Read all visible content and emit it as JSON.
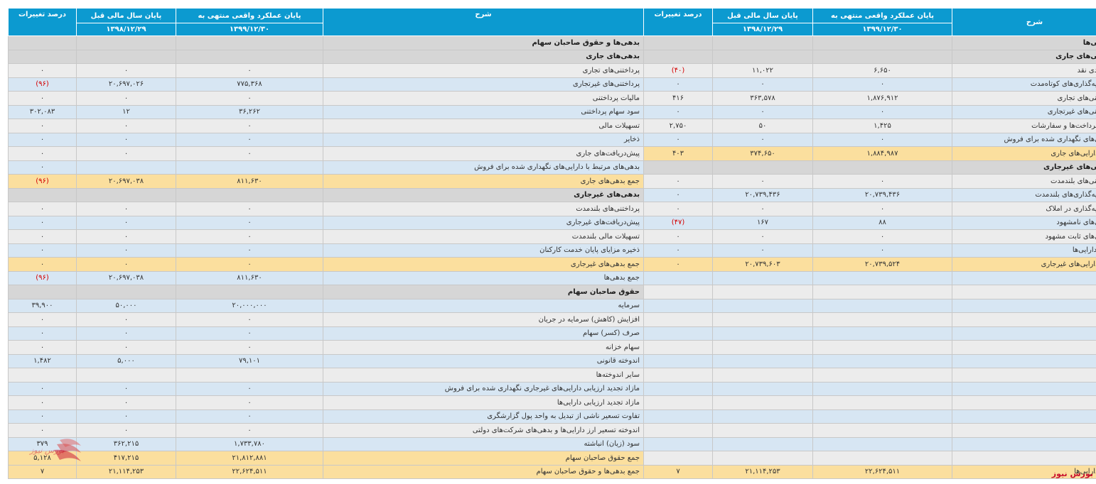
{
  "headers": {
    "desc": "شرح",
    "current": "پایان عملکرد واقعی منتهی به",
    "current_date": "۱۳۹۹/۱۲/۳۰",
    "previous": "پایان سال مالی قبل",
    "previous_date": "۱۳۹۸/۱۲/۲۹",
    "change": "درصد تغییرات"
  },
  "brand": "بورس نیوز",
  "rows": [
    {
      "a": {
        "d": "دارایی‌ها",
        "k": "sec"
      },
      "l": {
        "d": "بدهی‌ها و حقوق صاحبان سهام",
        "k": "sec"
      }
    },
    {
      "a": {
        "d": "دارایی‌های جاری",
        "k": "sec"
      },
      "l": {
        "d": "بدهی‌های جاری",
        "k": "sec"
      }
    },
    {
      "a": {
        "d": "موجودی نقد",
        "c": "۶,۶۵۰",
        "p": "۱۱,۰۲۲",
        "x": "(۴۰)",
        "neg": true
      },
      "l": {
        "d": "پرداختنی‌های تجاری",
        "c": "۰",
        "p": "۰",
        "x": "۰"
      }
    },
    {
      "a": {
        "d": "سرمایه‌گذاری‌های کوتاه‌مدت",
        "c": "۰",
        "p": "۰",
        "x": "۰"
      },
      "l": {
        "d": "پرداختنی‌های غیرتجاری",
        "c": "۷۷۵,۳۶۸",
        "p": "۲۰,۶۹۷,۰۲۶",
        "x": "(۹۶)",
        "neg": true
      }
    },
    {
      "a": {
        "d": "دریافتنی‌های تجاری",
        "c": "۱,۸۷۶,۹۱۲",
        "p": "۳۶۳,۵۷۸",
        "x": "۴۱۶"
      },
      "l": {
        "d": "مالیات پرداختنی",
        "c": "۰",
        "p": "۰",
        "x": "۰"
      }
    },
    {
      "a": {
        "d": "دریافتنی‌های غیرتجاری",
        "c": "۰",
        "p": "۰",
        "x": "۰"
      },
      "l": {
        "d": "سود سهام پرداختنی",
        "c": "۳۶,۲۶۲",
        "p": "۱۲",
        "x": "۳۰۲,۰۸۳"
      }
    },
    {
      "a": {
        "d": "پیش پرداخت‌ها و سفارشات",
        "c": "۱,۴۲۵",
        "p": "۵۰",
        "x": "۲,۷۵۰"
      },
      "l": {
        "d": "تسهیلات مالی",
        "c": "۰",
        "p": "۰",
        "x": "۰"
      }
    },
    {
      "a": {
        "d": "دارایی‌های نگهداری شده برای فروش",
        "c": "۰",
        "p": "۰",
        "x": "۰"
      },
      "l": {
        "d": "ذخایر",
        "c": "۰",
        "p": "۰",
        "x": "۰"
      }
    },
    {
      "a": {
        "d": "جمع دارایی‌های جاری",
        "c": "۱,۸۸۴,۹۸۷",
        "p": "۳۷۴,۶۵۰",
        "x": "۴۰۳",
        "k": "total"
      },
      "l": {
        "d": "پیش‌دریافت‌های جاری",
        "c": "۰",
        "p": "۰",
        "x": "۰"
      }
    },
    {
      "a": {
        "d": "دارایی‌های غیرجاری",
        "k": "sec"
      },
      "l": {
        "d": "بدهی‌های مرتبط با دارایی‌های نگهداری شده برای فروش",
        "c": "",
        "p": "",
        "x": "۰"
      }
    },
    {
      "a": {
        "d": "دریافتنی‌های بلندمدت",
        "c": "۰",
        "p": "۰",
        "x": "۰"
      },
      "l": {
        "d": "جمع بدهی‌های جاری",
        "c": "۸۱۱,۶۳۰",
        "p": "۲۰,۶۹۷,۰۳۸",
        "x": "(۹۶)",
        "neg": true,
        "k": "total"
      }
    },
    {
      "a": {
        "d": "سرمایه‌گذاری‌های بلندمدت",
        "c": "۲۰,۷۳۹,۴۳۶",
        "p": "۲۰,۷۳۹,۴۳۶",
        "x": "۰"
      },
      "l": {
        "d": "بدهی‌های غیرجاری",
        "k": "sec"
      }
    },
    {
      "a": {
        "d": "سرمایه‌گذاری در املاک",
        "c": "۰",
        "p": "۰",
        "x": "۰"
      },
      "l": {
        "d": "پرداختنی‌های بلندمدت",
        "c": "۰",
        "p": "۰",
        "x": "۰"
      }
    },
    {
      "a": {
        "d": "دارایی‌های نامشهود",
        "c": "۸۸",
        "p": "۱۶۷",
        "x": "(۴۷)",
        "neg": true
      },
      "l": {
        "d": "پیش‌دریافت‌های غیرجاری",
        "c": "۰",
        "p": "۰",
        "x": "۰"
      }
    },
    {
      "a": {
        "d": "دارایی‌های ثابت مشهود",
        "c": "۰",
        "p": "۰",
        "x": "۰"
      },
      "l": {
        "d": "تسهیلات مالی بلندمدت",
        "c": "۰",
        "p": "۰",
        "x": "۰"
      }
    },
    {
      "a": {
        "d": "سایر دارایی‌ها",
        "c": "۰",
        "p": "۰",
        "x": "۰"
      },
      "l": {
        "d": "ذخیره مزایای پایان خدمت کارکنان",
        "c": "۰",
        "p": "۰",
        "x": "۰"
      }
    },
    {
      "a": {
        "d": "جمع دارایی‌های غیرجاری",
        "c": "۲۰,۷۳۹,۵۲۴",
        "p": "۲۰,۷۳۹,۶۰۳",
        "x": "۰",
        "k": "total"
      },
      "l": {
        "d": "جمع بدهی‌های غیرجاری",
        "c": "۰",
        "p": "۰",
        "x": "۰",
        "k": "total"
      }
    },
    {
      "a": {
        "k": "blank"
      },
      "l": {
        "d": "جمع بدهی‌ها",
        "c": "۸۱۱,۶۳۰",
        "p": "۲۰,۶۹۷,۰۳۸",
        "x": "(۹۶)",
        "neg": true
      }
    },
    {
      "a": {
        "k": "blank"
      },
      "l": {
        "d": "حقوق صاحبان سهام",
        "k": "sec"
      }
    },
    {
      "a": {
        "k": "blank"
      },
      "l": {
        "d": "سرمایه",
        "c": "۲۰,۰۰۰,۰۰۰",
        "p": "۵۰,۰۰۰",
        "x": "۳۹,۹۰۰"
      }
    },
    {
      "a": {
        "k": "blank"
      },
      "l": {
        "d": "افزایش (کاهش) سرمایه در جریان",
        "c": "۰",
        "p": "۰",
        "x": "۰"
      }
    },
    {
      "a": {
        "k": "blank"
      },
      "l": {
        "d": "صرف (کسر) سهام",
        "c": "۰",
        "p": "۰",
        "x": "۰"
      }
    },
    {
      "a": {
        "k": "blank"
      },
      "l": {
        "d": "سهام خزانه",
        "c": "۰",
        "p": "۰",
        "x": "۰"
      }
    },
    {
      "a": {
        "k": "blank"
      },
      "l": {
        "d": "اندوخته قانونی",
        "c": "۷۹,۱۰۱",
        "p": "۵,۰۰۰",
        "x": "۱,۴۸۲"
      }
    },
    {
      "a": {
        "k": "blank"
      },
      "l": {
        "d": "سایر اندوخته‌ها",
        "c": "",
        "p": "",
        "x": ""
      }
    },
    {
      "a": {
        "k": "blank"
      },
      "l": {
        "d": "مازاد تجدید ارزیابی دارایی‌های غیرجاری نگهداری شده برای فروش",
        "c": "۰",
        "p": "۰",
        "x": "۰"
      }
    },
    {
      "a": {
        "k": "blank"
      },
      "l": {
        "d": "مازاد تجدید ارزیابی دارایی‌ها",
        "c": "۰",
        "p": "۰",
        "x": "۰"
      }
    },
    {
      "a": {
        "k": "blank"
      },
      "l": {
        "d": "تفاوت تسعیر ناشی از تبدیل به واحد پول گزارشگری",
        "c": "۰",
        "p": "۰",
        "x": "۰"
      }
    },
    {
      "a": {
        "k": "blank"
      },
      "l": {
        "d": "اندوخته تسعیر ارز دارایی‌ها و بدهی‌های شرکت‌های دولتی",
        "c": "۰",
        "p": "۰",
        "x": "۰"
      }
    },
    {
      "a": {
        "k": "blank"
      },
      "l": {
        "d": "سود (زیان) انباشته",
        "c": "۱,۷۳۳,۷۸۰",
        "p": "۳۶۲,۲۱۵",
        "x": "۳۷۹"
      }
    },
    {
      "a": {
        "k": "blank"
      },
      "l": {
        "d": "جمع حقوق صاحبان سهام",
        "c": "۲۱,۸۱۲,۸۸۱",
        "p": "۴۱۷,۲۱۵",
        "x": "۵,۱۲۸",
        "k": "total"
      }
    },
    {
      "a": {
        "d": "جمع دارایی‌ها",
        "c": "۲۲,۶۲۴,۵۱۱",
        "p": "۲۱,۱۱۴,۲۵۳",
        "x": "۷",
        "k": "total"
      },
      "l": {
        "d": "جمع بدهی‌ها و حقوق صاحبان سهام",
        "c": "۲۲,۶۲۴,۵۱۱",
        "p": "۲۱,۱۱۴,۲۵۳",
        "x": "۷",
        "k": "total"
      }
    }
  ]
}
